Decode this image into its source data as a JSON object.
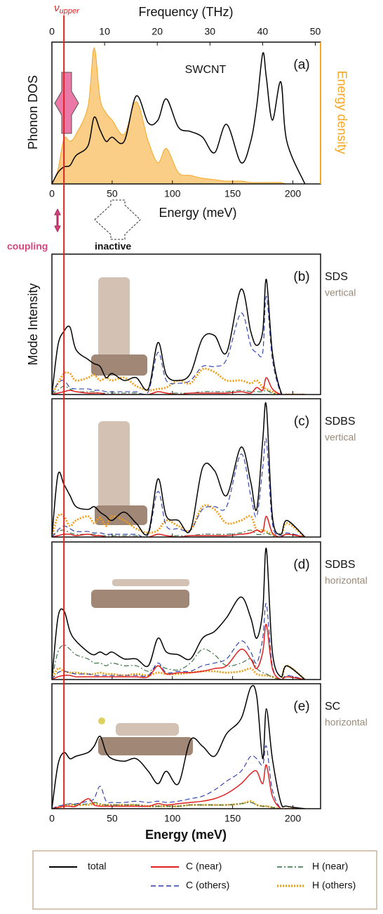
{
  "chart_data": [
    {
      "type": "line",
      "label": "(a)",
      "annotation": "SWCNT",
      "ylabel": "Phonon DOS",
      "y2label": "Energy density",
      "xlabel": "Energy (meV)",
      "x2label": "Frequency (THz)",
      "xlim": [
        0,
        223
      ],
      "xticks": [
        0,
        50,
        100,
        150,
        200
      ],
      "x2lim": [
        0,
        51
      ],
      "x2ticks": [
        0,
        10,
        20,
        30,
        40,
        50
      ],
      "ylim": [
        0,
        1
      ],
      "x": [
        0,
        5,
        10,
        15,
        20,
        30,
        35,
        40,
        45,
        50,
        60,
        70,
        80,
        88,
        95,
        105,
        115,
        125,
        135,
        145,
        157,
        165,
        170,
        175,
        178,
        183,
        190,
        195,
        210
      ],
      "series": [
        {
          "color": "#f5a623",
          "fill": true,
          "values": [
            0,
            0.1,
            0.32,
            0.3,
            0.35,
            0.55,
            0.96,
            0.6,
            0.5,
            0.45,
            0.35,
            0.58,
            0.3,
            0.15,
            0.25,
            0.08,
            0.06,
            0.04,
            0.03,
            0.02,
            0.02,
            0.01,
            0.01,
            0.01,
            0.01,
            0.01,
            0.01,
            0,
            0
          ]
        },
        {
          "color": "#000000",
          "fill": false,
          "values": [
            0,
            0.08,
            0.12,
            0.13,
            0.2,
            0.27,
            0.47,
            0.38,
            0.3,
            0.33,
            0.3,
            0.62,
            0.43,
            0.45,
            0.6,
            0.4,
            0.37,
            0.33,
            0.22,
            0.42,
            0.15,
            0.3,
            0.55,
            0.92,
            0.75,
            0.45,
            0.72,
            0.3,
            0
          ]
        }
      ]
    },
    {
      "type": "line",
      "label": "(b)",
      "system": "SDS",
      "orientation": "vertical",
      "ylabel": "Mode Intensity",
      "xlim": [
        0,
        223
      ],
      "ylim": [
        0,
        1
      ],
      "x": [
        0,
        5,
        10,
        15,
        20,
        30,
        35,
        40,
        45,
        50,
        60,
        70,
        80,
        88,
        95,
        105,
        115,
        125,
        135,
        145,
        157,
        165,
        170,
        175,
        178,
        183,
        190,
        195,
        210
      ],
      "series": [
        {
          "values": [
            0,
            0.35,
            0.45,
            0.48,
            0.32,
            0.25,
            0.22,
            0.2,
            0.12,
            0.15,
            0.1,
            0.12,
            0.04,
            0.37,
            0.14,
            0.1,
            0.15,
            0.4,
            0.42,
            0.3,
            0.75,
            0.45,
            0.35,
            0.45,
            0.82,
            0.3,
            0.02,
            0,
            0
          ]
        },
        {
          "values": [
            0,
            0.01,
            0.02,
            0.03,
            0.02,
            0.01,
            0.01,
            0.01,
            0,
            0,
            0,
            0,
            0,
            0.02,
            0.01,
            0,
            0.01,
            0.01,
            0.01,
            0.01,
            0.02,
            0.01,
            0.05,
            0.03,
            0.12,
            0.04,
            0,
            0,
            0
          ]
        },
        {
          "values": [
            0,
            0.08,
            0.1,
            0.05,
            0.04,
            0.04,
            0.03,
            0.03,
            0.02,
            0.02,
            0.02,
            0.02,
            0.02,
            0.3,
            0.1,
            0.08,
            0.1,
            0.2,
            0.2,
            0.25,
            0.58,
            0.35,
            0.3,
            0.3,
            0.7,
            0.25,
            0.01,
            0,
            0
          ]
        },
        {
          "values": [
            0,
            0.03,
            0.06,
            0.04,
            0.02,
            0.02,
            0.02,
            0.01,
            0.01,
            0.01,
            0.01,
            0.01,
            0,
            0.02,
            0.01,
            0.01,
            0.01,
            0.02,
            0.02,
            0.02,
            0.03,
            0.02,
            0.02,
            0.02,
            0.03,
            0.01,
            0,
            0,
            0
          ]
        },
        {
          "values": [
            0,
            0.08,
            0.15,
            0.15,
            0.1,
            0.12,
            0.14,
            0.1,
            0.12,
            0.1,
            0.12,
            0.06,
            0.03,
            0.04,
            0.05,
            0.1,
            0.08,
            0.18,
            0.16,
            0.1,
            0.1,
            0.08,
            0.1,
            0.05,
            0.04,
            0.02,
            0,
            0,
            0
          ]
        }
      ]
    },
    {
      "type": "line",
      "label": "(c)",
      "system": "SDBS",
      "orientation": "vertical",
      "xlim": [
        0,
        223
      ],
      "ylim": [
        0,
        1
      ],
      "x": [
        0,
        5,
        10,
        15,
        20,
        30,
        35,
        40,
        45,
        50,
        60,
        70,
        80,
        88,
        95,
        105,
        115,
        125,
        135,
        145,
        157,
        165,
        170,
        175,
        178,
        183,
        190,
        195,
        210
      ],
      "series": [
        {
          "values": [
            0,
            0.45,
            0.38,
            0.3,
            0.22,
            0.2,
            0.22,
            0.18,
            0.15,
            0.12,
            0.18,
            0.1,
            0.03,
            0.42,
            0.15,
            0.12,
            0.05,
            0.5,
            0.48,
            0.3,
            0.65,
            0.4,
            0.2,
            0.7,
            0.95,
            0.15,
            0.02,
            0.12,
            0
          ]
        },
        {
          "values": [
            0,
            0.01,
            0.02,
            0.02,
            0.01,
            0.02,
            0.01,
            0.01,
            0,
            0,
            0,
            0,
            0,
            0.02,
            0.01,
            0,
            0.01,
            0.01,
            0.01,
            0.01,
            0.02,
            0.03,
            0.05,
            0.04,
            0.15,
            0.03,
            0,
            0.02,
            0
          ]
        },
        {
          "values": [
            0,
            0.05,
            0.08,
            0.06,
            0.04,
            0.04,
            0.03,
            0.03,
            0.02,
            0.02,
            0.02,
            0.02,
            0.02,
            0.33,
            0.08,
            0.06,
            0.05,
            0.2,
            0.22,
            0.22,
            0.6,
            0.3,
            0.15,
            0.5,
            0.7,
            0.1,
            0.01,
            0.03,
            0
          ]
        },
        {
          "values": [
            0,
            0.04,
            0.05,
            0.03,
            0.02,
            0.02,
            0.02,
            0.01,
            0.01,
            0.01,
            0.01,
            0.01,
            0,
            0.02,
            0.01,
            0.01,
            0.01,
            0.02,
            0.02,
            0.02,
            0.03,
            0.05,
            0.02,
            0.02,
            0.03,
            0.01,
            0,
            0.02,
            0
          ]
        },
        {
          "values": [
            0,
            0.15,
            0.15,
            0.08,
            0.12,
            0.15,
            0.1,
            0.14,
            0.08,
            0.15,
            0.12,
            0.06,
            0.03,
            0.05,
            0.12,
            0.08,
            0.05,
            0.22,
            0.2,
            0.1,
            0.12,
            0.15,
            0.05,
            0.05,
            0.04,
            0.02,
            0,
            0.1,
            0
          ]
        }
      ]
    },
    {
      "type": "line",
      "label": "(d)",
      "system": "SDBS",
      "orientation": "horizontal",
      "xlim": [
        0,
        223
      ],
      "ylim": [
        0,
        1
      ],
      "x": [
        0,
        5,
        10,
        15,
        20,
        30,
        35,
        40,
        45,
        50,
        60,
        70,
        80,
        88,
        95,
        105,
        115,
        125,
        135,
        145,
        157,
        165,
        170,
        175,
        178,
        183,
        190,
        195,
        210
      ],
      "series": [
        {
          "values": [
            0,
            0.45,
            0.5,
            0.35,
            0.28,
            0.2,
            0.18,
            0.2,
            0.18,
            0.2,
            0.15,
            0.15,
            0.1,
            0.3,
            0.2,
            0.18,
            0.15,
            0.3,
            0.35,
            0.45,
            0.6,
            0.45,
            0.3,
            0.5,
            0.95,
            0.2,
            0.02,
            0.1,
            0
          ]
        },
        {
          "values": [
            0,
            0.02,
            0.03,
            0.03,
            0.02,
            0.02,
            0.02,
            0.02,
            0.02,
            0.02,
            0.02,
            0.02,
            0.02,
            0.1,
            0.04,
            0.05,
            0.05,
            0.06,
            0.08,
            0.1,
            0.22,
            0.15,
            0.08,
            0.2,
            0.4,
            0.08,
            0,
            0.02,
            0
          ]
        },
        {
          "values": [
            0,
            0.05,
            0.06,
            0.05,
            0.04,
            0.04,
            0.03,
            0.03,
            0.03,
            0.03,
            0.03,
            0.03,
            0.03,
            0.12,
            0.05,
            0.06,
            0.06,
            0.1,
            0.12,
            0.15,
            0.28,
            0.2,
            0.12,
            0.3,
            0.55,
            0.1,
            0,
            0.03,
            0
          ]
        },
        {
          "values": [
            0,
            0.2,
            0.25,
            0.22,
            0.18,
            0.15,
            0.12,
            0.12,
            0.1,
            0.12,
            0.1,
            0.1,
            0.06,
            0.1,
            0.08,
            0.07,
            0.12,
            0.22,
            0.18,
            0.1,
            0.12,
            0.15,
            0.08,
            0.05,
            0.04,
            0.02,
            0,
            0.02,
            0
          ]
        },
        {
          "values": [
            0,
            0.08,
            0.06,
            0.05,
            0.05,
            0.04,
            0.04,
            0.05,
            0.04,
            0.04,
            0.03,
            0.04,
            0.03,
            0.05,
            0.04,
            0.04,
            0.05,
            0.06,
            0.06,
            0.05,
            0.06,
            0.08,
            0.04,
            0.03,
            0.03,
            0.02,
            0,
            0.1,
            0
          ]
        }
      ]
    },
    {
      "type": "line",
      "label": "(e)",
      "system": "SC",
      "orientation": "horizontal",
      "xlabel": "Energy (meV)",
      "xlim": [
        0,
        223
      ],
      "xticks": [
        0,
        50,
        100,
        150,
        200
      ],
      "ylim": [
        0,
        1
      ],
      "x": [
        0,
        5,
        10,
        15,
        20,
        30,
        35,
        40,
        45,
        50,
        60,
        70,
        80,
        88,
        95,
        105,
        115,
        125,
        135,
        145,
        157,
        165,
        170,
        175,
        178,
        183,
        190,
        195,
        210
      ],
      "series": [
        {
          "values": [
            0,
            0.35,
            0.45,
            0.4,
            0.42,
            0.45,
            0.5,
            0.58,
            0.45,
            0.4,
            0.38,
            0.4,
            0.3,
            0.2,
            0.3,
            0.2,
            0.55,
            0.5,
            0.42,
            0.6,
            0.72,
            0.97,
            0.9,
            0.4,
            0.8,
            0.4,
            0.05,
            0.02,
            0
          ]
        },
        {
          "values": [
            0,
            0.01,
            0.02,
            0.02,
            0.02,
            0.08,
            0.03,
            0.02,
            0.02,
            0.02,
            0.02,
            0.02,
            0.02,
            0.04,
            0.03,
            0.04,
            0.05,
            0.06,
            0.08,
            0.12,
            0.2,
            0.28,
            0.3,
            0.2,
            0.35,
            0.1,
            0,
            0,
            0
          ]
        },
        {
          "values": [
            0,
            0.02,
            0.03,
            0.04,
            0.04,
            0.06,
            0.08,
            0.18,
            0.06,
            0.05,
            0.05,
            0.06,
            0.05,
            0.06,
            0.05,
            0.06,
            0.08,
            0.1,
            0.15,
            0.22,
            0.3,
            0.42,
            0.4,
            0.35,
            0.5,
            0.15,
            0,
            0,
            0
          ]
        },
        {
          "values": [
            0,
            0.02,
            0.03,
            0.04,
            0.03,
            0.04,
            0.05,
            0.04,
            0.03,
            0.03,
            0.03,
            0.03,
            0.02,
            0.02,
            0.02,
            0.02,
            0.03,
            0.03,
            0.03,
            0.03,
            0.04,
            0.05,
            0.03,
            0.02,
            0.02,
            0.01,
            0,
            0,
            0
          ]
        },
        {
          "values": [
            0,
            0.01,
            0.02,
            0.03,
            0.03,
            0.03,
            0.04,
            0.03,
            0.03,
            0.03,
            0.03,
            0.03,
            0.02,
            0.02,
            0.02,
            0.02,
            0.03,
            0.03,
            0.03,
            0.03,
            0.04,
            0.06,
            0.03,
            0.02,
            0.02,
            0.01,
            0,
            0,
            0
          ]
        }
      ]
    }
  ],
  "legend": {
    "items": [
      {
        "name": "total",
        "color": "#000000",
        "style": "solid"
      },
      {
        "name": "C (near)",
        "color": "#e02020",
        "style": "solid"
      },
      {
        "name": "C (others)",
        "color": "#2a3aa8",
        "style": "dashed"
      },
      {
        "name": "H (near)",
        "color": "#2e6b3a",
        "style": "dashdot"
      },
      {
        "name": "H (others)",
        "color": "#f39c12",
        "style": "dotted"
      }
    ]
  },
  "marker": {
    "label": "ν",
    "sub": "upper",
    "x": 10,
    "color": "#e02020"
  },
  "coupling": "coupling",
  "inactive": "inactive"
}
